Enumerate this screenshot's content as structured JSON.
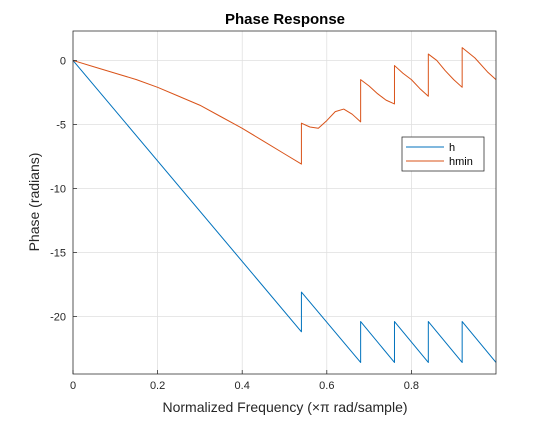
{
  "chart_data": {
    "type": "line",
    "title": "Phase Response",
    "xlabel": "Normalized Frequency (×π rad/sample)",
    "ylabel": "Phase (radians)",
    "xlim": [
      0,
      1
    ],
    "ylim": [
      -24.5,
      2.3
    ],
    "xticks": [
      0,
      0.2,
      0.4,
      0.6,
      0.8
    ],
    "xtick_labels": [
      "0",
      "0.2",
      "0.4",
      "0.6",
      "0.8"
    ],
    "yticks": [
      0,
      -5,
      -10,
      -15,
      -20
    ],
    "ytick_labels": [
      "0",
      "-5",
      "-10",
      "-15",
      "-20"
    ],
    "grid": true,
    "legend_position": "right",
    "series": [
      {
        "name": "h",
        "color": "#0072BD",
        "x": [
          0,
          0.54,
          0.54,
          0.68,
          0.68,
          0.76,
          0.76,
          0.84,
          0.84,
          0.92,
          0.92,
          1.0
        ],
        "y": [
          0,
          -21.2,
          -18.1,
          -23.6,
          -20.4,
          -23.6,
          -20.4,
          -23.6,
          -20.4,
          -23.6,
          -20.4,
          -23.6
        ]
      },
      {
        "name": "hmin",
        "color": "#D95319",
        "x": [
          0,
          0.05,
          0.1,
          0.15,
          0.2,
          0.25,
          0.3,
          0.35,
          0.4,
          0.45,
          0.5,
          0.54,
          0.54,
          0.56,
          0.58,
          0.6,
          0.62,
          0.64,
          0.66,
          0.68,
          0.68,
          0.7,
          0.72,
          0.74,
          0.76,
          0.76,
          0.78,
          0.8,
          0.82,
          0.84,
          0.84,
          0.86,
          0.88,
          0.9,
          0.92,
          0.92,
          0.95,
          0.98,
          1.0
        ],
        "y": [
          0,
          -0.5,
          -1.0,
          -1.5,
          -2.1,
          -2.8,
          -3.5,
          -4.4,
          -5.3,
          -6.3,
          -7.3,
          -8.1,
          -4.9,
          -5.2,
          -5.3,
          -4.7,
          -4.0,
          -3.8,
          -4.2,
          -4.8,
          -1.5,
          -2.0,
          -2.6,
          -3.1,
          -3.4,
          -0.4,
          -1.0,
          -1.5,
          -2.2,
          -2.8,
          0.5,
          0.0,
          -0.8,
          -1.5,
          -2.1,
          1.0,
          0.2,
          -0.9,
          -1.5
        ]
      }
    ]
  }
}
